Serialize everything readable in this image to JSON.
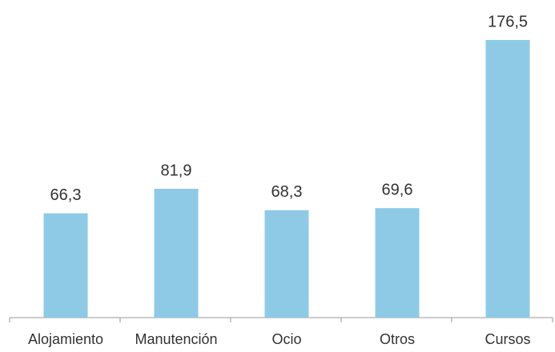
{
  "chart_data": {
    "type": "bar",
    "categories": [
      "Alojamiento",
      "Manutención",
      "Ocio",
      "Otros",
      "Cursos"
    ],
    "values": [
      66.3,
      81.9,
      68.3,
      69.6,
      176.5
    ],
    "value_labels": [
      "66,3",
      "81,9",
      "68,3",
      "69,6",
      "176,5"
    ],
    "color": "#8ecae6"
  }
}
